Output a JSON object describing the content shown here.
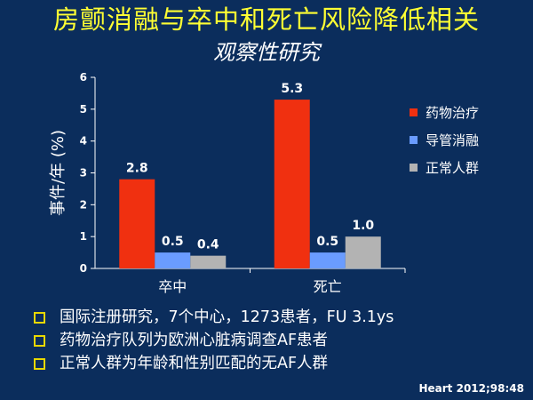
{
  "slide": {
    "title": "房颤消融与卒中和死亡风险降低相关",
    "subtitle": "观察性研究",
    "bullets": [
      "国际注册研究，7个中心，1273患者，FU 3.1ys",
      "药物治疗队列为欧洲心脏病调查AF患者",
      "正常人群为年龄和性别匹配的无AF人群"
    ],
    "citation": "Heart 2012;98:48",
    "colors": {
      "background": "#0b2d5c",
      "title": "#ffff33",
      "bullet_marker": "#e8d800"
    }
  },
  "chart_data": {
    "type": "bar",
    "categories": [
      "卒中",
      "死亡"
    ],
    "series": [
      {
        "name": "药物治疗",
        "values": [
          2.8,
          5.3
        ],
        "color": "#f03010"
      },
      {
        "name": "导管消融",
        "values": [
          0.5,
          0.5
        ],
        "color": "#6a9cff"
      },
      {
        "name": "正常人群",
        "values": [
          0.4,
          1.0
        ],
        "color": "#b3b3b3"
      }
    ],
    "data_labels": [
      [
        "2.8",
        "0.5",
        "0.4"
      ],
      [
        "5.3",
        "0.5",
        "1.0"
      ]
    ],
    "ylabel": "事件/年 (%)",
    "xlabel": "",
    "ylim": [
      0,
      6
    ],
    "yticks": [
      "0",
      "1",
      "2",
      "3",
      "4",
      "5",
      "6"
    ],
    "grid": false,
    "legend_position": "right"
  }
}
